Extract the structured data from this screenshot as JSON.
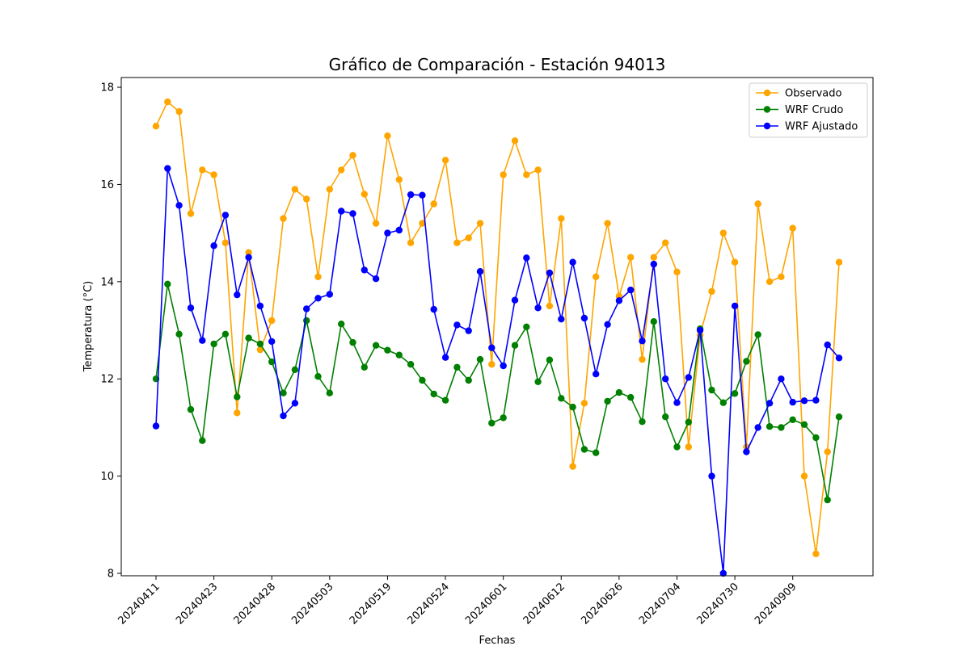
{
  "chart_data": {
    "type": "line",
    "title": "Gráfico de Comparación - Estación 94013",
    "xlabel": "Fechas",
    "ylabel": "Temperatura (°C)",
    "ylim": [
      7.95,
      18.2
    ],
    "yticks": [
      8,
      10,
      12,
      14,
      16,
      18
    ],
    "xtick_labels": [
      "20240411",
      "20240423",
      "20240428",
      "20240503",
      "20240519",
      "20240524",
      "20240601",
      "20240612",
      "20240626",
      "20240704",
      "20240730",
      "20240909"
    ],
    "xtick_every": 5,
    "grid": false,
    "legend_position": "upper right",
    "series": [
      {
        "name": "Observado",
        "color": "#ffa500",
        "values": [
          17.2,
          17.7,
          17.5,
          15.4,
          16.3,
          16.2,
          14.8,
          11.3,
          14.6,
          12.6,
          13.2,
          15.3,
          15.9,
          15.7,
          14.1,
          15.9,
          16.3,
          16.6,
          15.8,
          15.2,
          17.0,
          16.1,
          14.8,
          15.2,
          15.6,
          16.5,
          14.8,
          14.9,
          15.2,
          12.3,
          16.2,
          16.9,
          16.2,
          16.3,
          13.5,
          15.3,
          10.2,
          11.5,
          14.1,
          15.2,
          13.7,
          14.5,
          12.4,
          14.5,
          14.8,
          14.2,
          10.6,
          12.9,
          13.8,
          15.0,
          14.4,
          10.6,
          15.6,
          14.0,
          14.1,
          15.1,
          10.0,
          8.4,
          10.5,
          14.4
        ]
      },
      {
        "name": "WRF Crudo",
        "color": "#008000",
        "values": [
          12.0,
          13.95,
          12.92,
          11.37,
          10.73,
          12.72,
          12.92,
          11.63,
          12.84,
          12.72,
          12.35,
          11.71,
          12.19,
          13.2,
          12.05,
          11.71,
          13.13,
          12.75,
          12.24,
          12.69,
          12.59,
          12.49,
          12.3,
          11.97,
          11.69,
          11.56,
          12.24,
          11.97,
          12.4,
          11.09,
          11.2,
          12.69,
          13.07,
          11.94,
          12.39,
          11.6,
          11.42,
          10.55,
          10.48,
          11.54,
          11.72,
          11.62,
          11.12,
          13.18,
          11.22,
          10.6,
          11.11,
          13.03,
          11.77,
          11.51,
          11.7,
          12.36,
          12.91,
          11.02,
          11.0,
          11.16,
          11.06,
          10.79,
          9.51,
          11.22
        ]
      },
      {
        "name": "WRF Ajustado",
        "color": "#0000ff",
        "values": [
          11.03,
          16.33,
          15.57,
          13.46,
          12.79,
          14.74,
          15.37,
          13.73,
          14.5,
          13.5,
          12.77,
          11.24,
          11.5,
          13.44,
          13.66,
          13.74,
          15.45,
          15.4,
          14.24,
          14.06,
          15.0,
          15.06,
          15.79,
          15.78,
          13.43,
          12.44,
          13.11,
          12.99,
          14.21,
          12.64,
          12.27,
          13.62,
          14.49,
          13.46,
          14.18,
          13.23,
          14.4,
          13.25,
          12.1,
          13.12,
          13.61,
          13.83,
          12.78,
          14.36,
          12.0,
          11.51,
          12.03,
          13.0,
          10.0,
          8.0,
          13.5,
          10.5,
          11.0,
          11.5,
          12.0,
          11.52,
          11.55,
          11.56,
          12.7,
          12.43
        ]
      }
    ]
  }
}
